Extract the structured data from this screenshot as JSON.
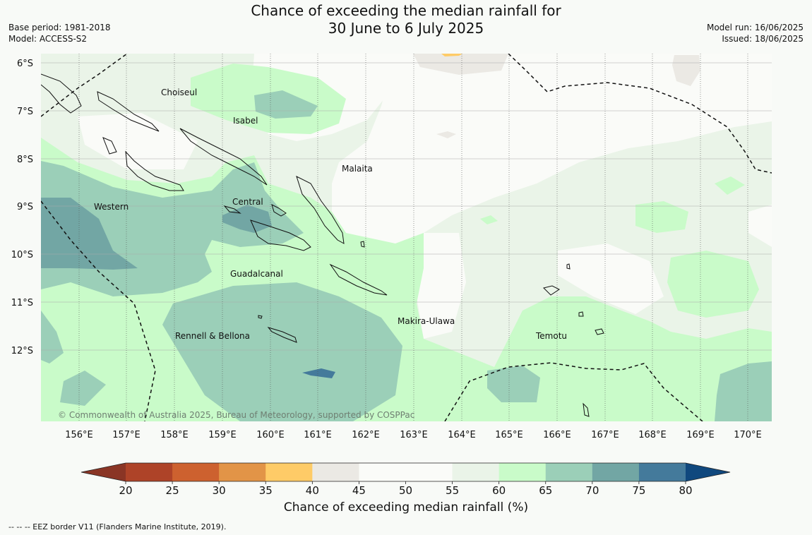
{
  "title": {
    "line1": "Chance of exceeding the median rainfall for",
    "line2": "30 June to 6 July 2025"
  },
  "header_left": {
    "base_period": "Base period: 1981-2018",
    "model": "Model: ACCESS-S2"
  },
  "header_right": {
    "model_run": "Model run: 16/06/2025",
    "issued": "Issued: 18/06/2025"
  },
  "map": {
    "lat_labels": [
      "6°S",
      "7°S",
      "8°S",
      "9°S",
      "10°S",
      "11°S",
      "12°S"
    ],
    "lon_labels": [
      "156°E",
      "157°E",
      "158°E",
      "159°E",
      "160°E",
      "161°E",
      "162°E",
      "163°E",
      "164°E",
      "165°E",
      "166°E",
      "167°E",
      "168°E",
      "169°E",
      "170°E"
    ],
    "regions": [
      "Choiseul",
      "Isabel",
      "Malaita",
      "Western",
      "Central",
      "Guadalcanal",
      "Makira-Ulawa",
      "Rennell & Bellona",
      "Temotu"
    ],
    "copyright": "© Commonwealth of Australia 2025, Bureau of Meteorology, supported by COSPPac"
  },
  "colorbar": {
    "ticks": [
      "20",
      "25",
      "30",
      "35",
      "40",
      "45",
      "50",
      "55",
      "60",
      "65",
      "70",
      "75",
      "80"
    ],
    "colors": [
      "#ae4328",
      "#cd612f",
      "#e29447",
      "#fecb67",
      "#ebe9e4",
      "#fafbf8",
      "#fafbf8",
      "#eaf4e8",
      "#c9fbc9",
      "#9bcfb8",
      "#72a6a4",
      "#447a9b"
    ],
    "under_color": "#8a3525",
    "over_color": "#10487e",
    "label": "Chance of exceeding median rainfall (%)"
  },
  "footer": "--  --  -- EEZ border V11 (Flanders Marine Institute, 2019)."
}
